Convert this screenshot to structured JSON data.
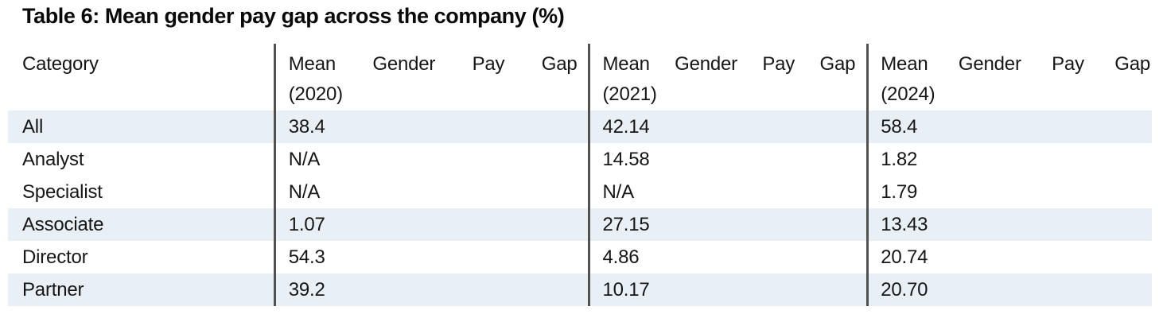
{
  "title": "Table 6: Mean gender pay gap across the company (%)",
  "table": {
    "header": {
      "category": "Category",
      "year_columns": [
        {
          "title": "Mean Gender Pay Gap",
          "year": "(2020)"
        },
        {
          "title": "Mean Gender Pay Gap",
          "year": "(2021)"
        },
        {
          "title": "Mean Gender Pay Gap",
          "year": "(2024)"
        }
      ]
    },
    "rows": [
      {
        "category": "All",
        "values": [
          "38.4",
          "42.14",
          "58.4"
        ],
        "highlighted": true
      },
      {
        "category": "Analyst",
        "values": [
          "N/A",
          "14.58",
          "1.82"
        ],
        "highlighted": false
      },
      {
        "category": "Specialist",
        "values": [
          "N/A",
          "N/A",
          "1.79"
        ],
        "highlighted": false
      },
      {
        "category": "Associate",
        "values": [
          "1.07",
          "27.15",
          "13.43"
        ],
        "highlighted": true
      },
      {
        "category": "Director",
        "values": [
          "54.3",
          "4.86",
          "20.74"
        ],
        "highlighted": false
      },
      {
        "category": "Partner",
        "values": [
          "39.2",
          "10.17",
          "20.70"
        ],
        "highlighted": true
      }
    ]
  },
  "colors": {
    "row_highlight": "#e8eff5",
    "divider": "#515151",
    "text": "#161616",
    "title_text": "#0a0a0a"
  }
}
